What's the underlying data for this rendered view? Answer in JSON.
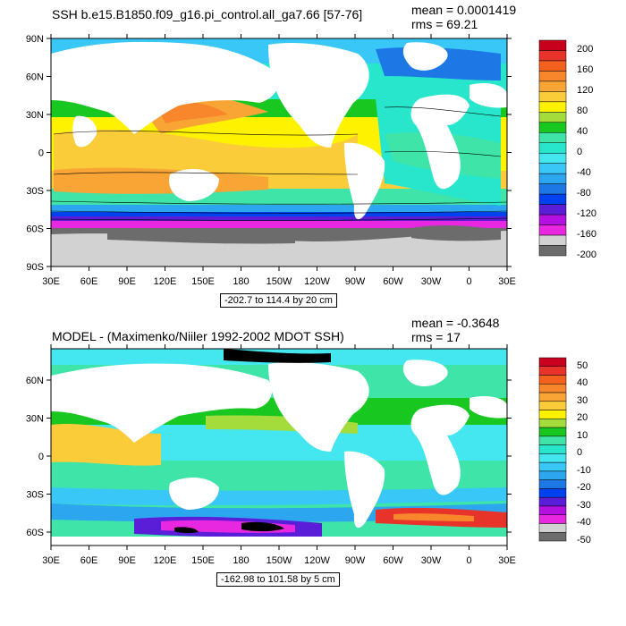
{
  "top": {
    "title": "SSH b.e15.B1850.f09_g16.pi_control.all_ga7.66 [57-76]",
    "mean": "mean = 0.0001419",
    "rms": "rms = 69.21",
    "range": "-202.7 to 114.4 by 20 cm",
    "lat_labels": [
      "90N",
      "60N",
      "30N",
      "0",
      "30S",
      "60S",
      "90S"
    ],
    "lon_labels": [
      "30E",
      "60E",
      "90E",
      "120E",
      "150E",
      "180",
      "150W",
      "120W",
      "90W",
      "60W",
      "30W",
      "0",
      "30E"
    ],
    "colorbar_labels": [
      "200",
      "160",
      "120",
      "80",
      "40",
      "0",
      "-40",
      "-80",
      "-120",
      "-160",
      "-200"
    ],
    "colorbar_colors": [
      "#c8001e",
      "#e8332b",
      "#f4601e",
      "#f8862a",
      "#f9a536",
      "#fbcc3a",
      "#fff200",
      "#a4dc3c",
      "#18c820",
      "#3ee4a8",
      "#27e6cc",
      "#44e6f0",
      "#38c7f6",
      "#2da6f0",
      "#1d78e6",
      "#0042f0",
      "#5a1ed8",
      "#b410e0",
      "#e828e0",
      "#d2d2d2",
      "#6c6c6c"
    ]
  },
  "bottom": {
    "title": "MODEL - (Maximenko/Niiler 1992-2002 MDOT SSH)",
    "mean": "mean = -0.3648",
    "rms": "rms = 17",
    "range": "-162.98 to 101.58 by 5 cm",
    "lat_labels": [
      "60N",
      "30N",
      "0",
      "30S",
      "60S"
    ],
    "lon_labels": [
      "30E",
      "60E",
      "90E",
      "120E",
      "150E",
      "180",
      "150W",
      "120W",
      "90W",
      "60W",
      "30W",
      "0",
      "30E"
    ],
    "colorbar_labels": [
      "50",
      "40",
      "30",
      "20",
      "10",
      "0",
      "-10",
      "-20",
      "-30",
      "-40",
      "-50"
    ],
    "colorbar_colors": [
      "#c8001e",
      "#e8332b",
      "#f4601e",
      "#f8862a",
      "#f9a536",
      "#fbcc3a",
      "#fff200",
      "#a4dc3c",
      "#18c820",
      "#3ee4a8",
      "#27e6cc",
      "#44e6f0",
      "#38c7f6",
      "#2da6f0",
      "#1d78e6",
      "#0042f0",
      "#5a1ed8",
      "#b410e0",
      "#e828e0",
      "#d2d2d2",
      "#6c6c6c"
    ]
  }
}
